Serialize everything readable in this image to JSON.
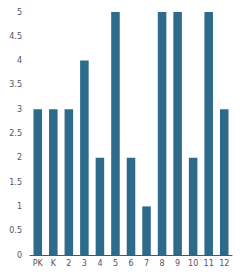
{
  "chart_data": {
    "type": "bar",
    "categories": [
      "PK",
      "K",
      "2",
      "3",
      "4",
      "5",
      "6",
      "7",
      "8",
      "9",
      "10",
      "11",
      "12"
    ],
    "values": [
      3,
      3,
      3,
      4,
      2,
      5,
      2,
      1,
      5,
      5,
      2,
      5,
      3
    ],
    "color": "#2e6b8a",
    "ylim": [
      0,
      5
    ],
    "yticks": [
      0,
      0.5,
      1,
      1.5,
      2,
      2.5,
      3,
      3.5,
      4,
      4.5,
      5
    ],
    "grid": false
  }
}
